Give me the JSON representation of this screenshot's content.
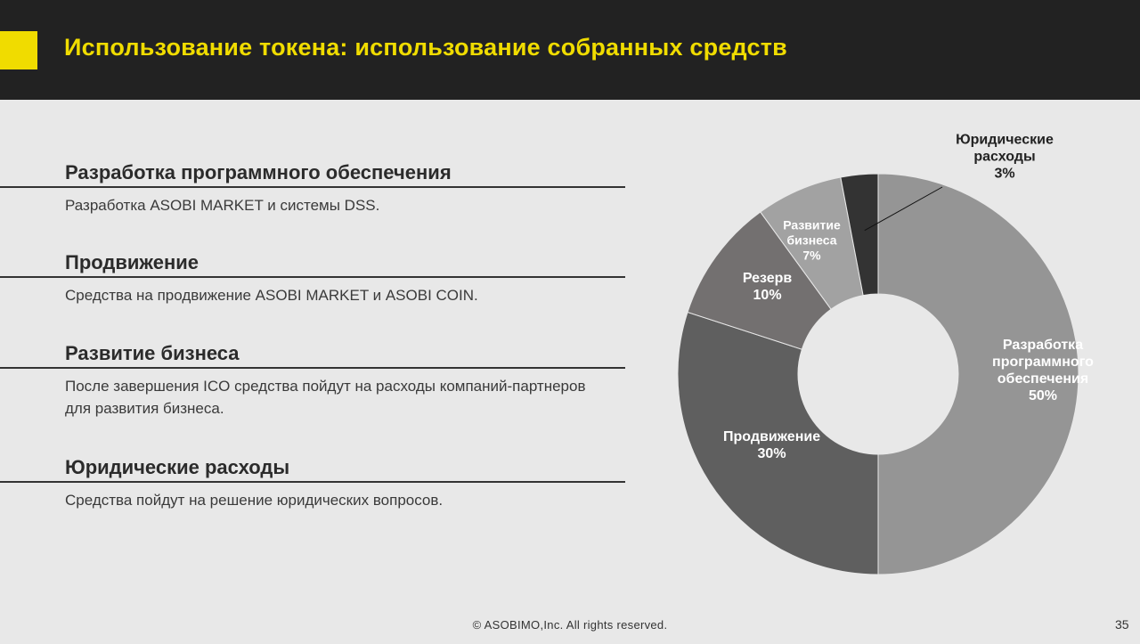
{
  "slide": {
    "title": "Использование токена: использование собранных средств",
    "accent_color": "#f0dc00",
    "header_color": "#222222"
  },
  "sections": [
    {
      "heading": "Разработка программного обеспечения",
      "body": "Разработка ASOBI MARKET и системы DSS."
    },
    {
      "heading": "Продвижение",
      "body": "Средства на продвижение ASOBI MARKET и ASOBI COIN."
    },
    {
      "heading": "Развитие бизнеса",
      "body": "После завершения ICO средства пойдут на расходы компаний-партнеров для развития бизнеса."
    },
    {
      "heading": "Юридические расходы",
      "body": "Средства пойдут на решение юридических вопросов."
    }
  ],
  "chart_data": {
    "type": "pie",
    "variant": "donut",
    "title": "",
    "slices": [
      {
        "label_lines": [
          "Разработка",
          "программного",
          "обеспечения"
        ],
        "value": 50,
        "value_label": "50%",
        "color": "#959595",
        "label_color": "#ffffff"
      },
      {
        "label_lines": [
          "Продвижение"
        ],
        "value": 30,
        "value_label": "30%",
        "color": "#5f5f5f",
        "label_color": "#ffffff"
      },
      {
        "label_lines": [
          "Резерв"
        ],
        "value": 10,
        "value_label": "10%",
        "color": "#737070",
        "label_color": "#ffffff"
      },
      {
        "label_lines": [
          "Развитие",
          "бизнеса"
        ],
        "value": 7,
        "value_label": "7%",
        "color": "#a2a2a2",
        "label_color": "#ffffff"
      },
      {
        "label_lines": [
          "Юридические",
          "расходы"
        ],
        "value": 3,
        "value_label": "3%",
        "color": "#333333",
        "label_color": "#222222",
        "external_label": true
      }
    ]
  },
  "footer": {
    "copyright": "© ASOBIMO,Inc. All rights reserved.",
    "page_number": "35"
  }
}
